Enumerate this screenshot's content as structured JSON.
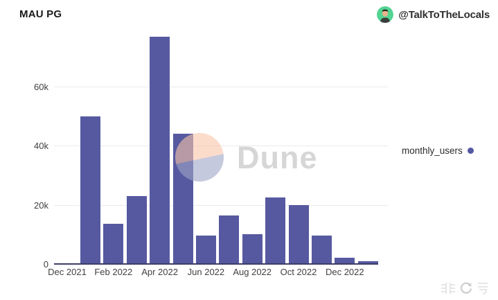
{
  "header": {
    "title": "MAU PG",
    "account_handle": "@TalkToTheLocals"
  },
  "legend": {
    "label": "monthly_users",
    "dot_color": "#5457a2"
  },
  "watermark": {
    "brand": "Dune"
  },
  "footer_watermark": {
    "text": "非号",
    "icon": "circular-arrows-logo"
  },
  "chart_data": {
    "type": "bar",
    "title": "MAU PG",
    "series_name": "monthly_users",
    "categories": [
      "Dec 2021",
      "Jan 2022",
      "Feb 2022",
      "Mar 2022",
      "Apr 2022",
      "May 2022",
      "Jun 2022",
      "Jul 2022",
      "Aug 2022",
      "Sep 2022",
      "Oct 2022",
      "Nov 2022",
      "Dec 2022",
      "Jan 2023"
    ],
    "values": [
      0,
      50000,
      13500,
      23000,
      77000,
      44000,
      9500,
      16500,
      10000,
      22500,
      20000,
      9500,
      2000,
      1000
    ],
    "y_ticks": [
      0,
      20000,
      40000,
      60000
    ],
    "y_tick_labels": [
      "0",
      "20k",
      "40k",
      "60k"
    ],
    "x_tick_labels": [
      "Dec 2021",
      "Feb 2022",
      "Apr 2022",
      "Jun 2022",
      "Aug 2022",
      "Oct 2022",
      "Dec 2022"
    ],
    "xlabel": "",
    "ylabel": "",
    "ylim": [
      0,
      80000
    ],
    "grid": true,
    "legend_position": "right",
    "bar_color": "#5659a0",
    "baseline_color": "#3d3e66"
  }
}
